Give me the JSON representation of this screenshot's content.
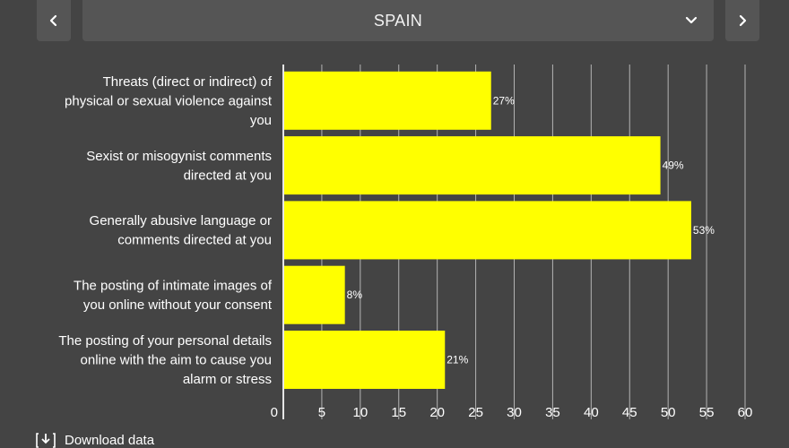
{
  "header": {
    "country": "SPAIN",
    "prev_icon": "chevron-left-icon",
    "next_icon": "chevron-right-icon",
    "dropdown_icon": "chevron-down-icon"
  },
  "chart_data": {
    "type": "bar",
    "orientation": "horizontal",
    "categories": [
      "Threats (direct or indirect) of physical or sexual violence against you",
      "Sexist or misogynist comments directed at you",
      "Generally abusive language or comments directed at you",
      "The posting of intimate images of you online without your consent",
      "The posting of your personal details online with the aim to cause you alarm or stress"
    ],
    "category_lines": [
      [
        "Threats (direct or indirect) of",
        "physical or sexual violence against",
        "you"
      ],
      [
        "Sexist or misogynist comments",
        "directed at you"
      ],
      [
        "Generally abusive language or",
        "comments directed at you"
      ],
      [
        "The posting of intimate images of",
        "you online without your consent"
      ],
      [
        "The posting of your personal details",
        "online with the aim to cause you",
        "alarm or stress"
      ]
    ],
    "values": [
      27,
      49,
      53,
      8,
      21
    ],
    "value_labels": [
      "27%",
      "49%",
      "53%",
      "8%",
      "21%"
    ],
    "xlim": [
      0,
      60
    ],
    "xticks": [
      0,
      5,
      10,
      15,
      20,
      25,
      30,
      35,
      40,
      45,
      50,
      55,
      60
    ],
    "xlabel": "",
    "ylabel": "",
    "title": "",
    "grid": true,
    "bar_color": "#ffff00",
    "background_color": "#444444",
    "grid_color": "#cfcfcf"
  },
  "footer": {
    "download_label": "Download data",
    "download_icon": "download-icon"
  }
}
